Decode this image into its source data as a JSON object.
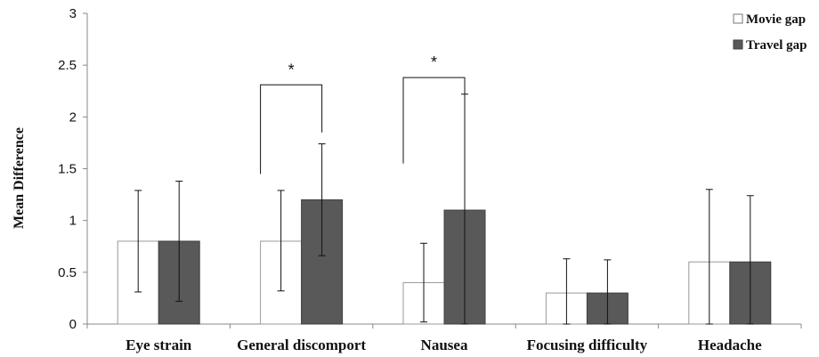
{
  "chart_data": {
    "type": "bar",
    "ylabel": "Mean Difference",
    "ylim": [
      0,
      3
    ],
    "yticks": [
      "0",
      "0.5",
      "1",
      "1.5",
      "2",
      "2.5",
      "3"
    ],
    "categories": [
      "Eye strain",
      "General discomport",
      "Nausea",
      "Focusing difficulty",
      "Headache"
    ],
    "series": [
      {
        "name": "Movie gap",
        "values": [
          0.8,
          0.8,
          0.4,
          0.3,
          0.6
        ],
        "error_low": [
          0.31,
          0.32,
          0.02,
          0.0,
          0.0
        ],
        "error_high": [
          1.29,
          1.29,
          0.78,
          0.63,
          1.3
        ],
        "color": "#ffffff"
      },
      {
        "name": "Travel gap",
        "values": [
          0.8,
          1.2,
          1.1,
          0.3,
          0.6
        ],
        "error_low": [
          0.22,
          0.66,
          0.0,
          0.0,
          0.0
        ],
        "error_high": [
          1.38,
          1.74,
          2.22,
          0.62,
          1.24
        ],
        "color": "#595959"
      }
    ],
    "significance": [
      {
        "category_index": 1,
        "label": "*",
        "bracket_low": 1.45,
        "bracket_top": 2.31
      },
      {
        "category_index": 2,
        "label": "*",
        "bracket_low": 1.55,
        "bracket_top": 2.38
      }
    ],
    "legend_position": "top-right",
    "grid": false
  }
}
